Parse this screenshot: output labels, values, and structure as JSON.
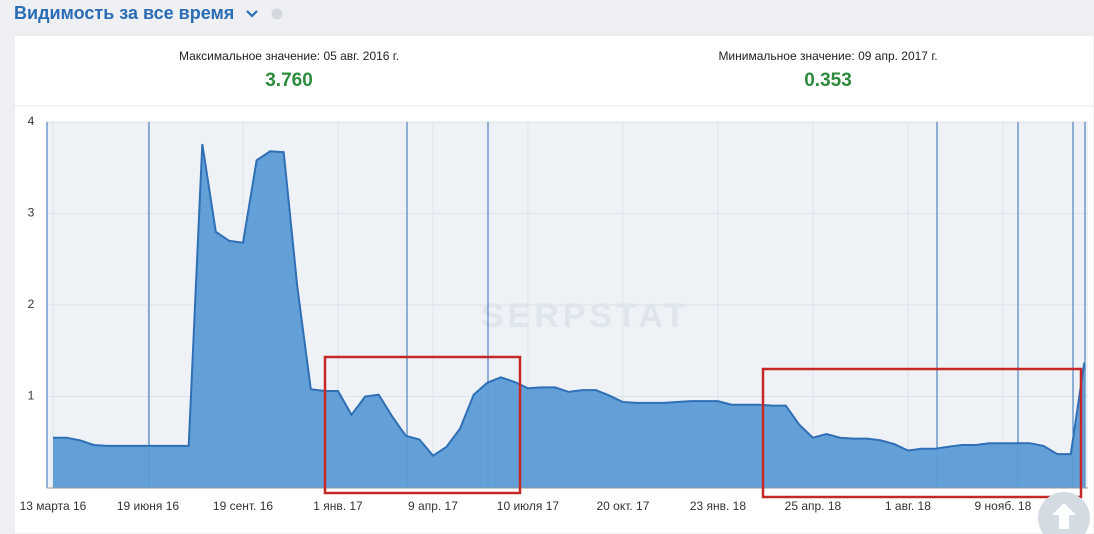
{
  "chart_data": {
    "type": "area",
    "title": "Видимость за все время",
    "stats": [
      {
        "label": "Максимальное значение: 05 авг. 2016 г.",
        "value": "3.760"
      },
      {
        "label": "Минимальное значение: 09 апр. 2017 г.",
        "value": "0.353"
      }
    ],
    "watermark": "SERPSTAT",
    "categories": [
      "13 марта 16",
      null,
      null,
      null,
      null,
      null,
      null,
      "19 июня 16",
      null,
      null,
      null,
      null,
      null,
      null,
      "19 сент. 16",
      null,
      null,
      null,
      null,
      null,
      null,
      "1 янв. 17",
      null,
      null,
      null,
      null,
      null,
      null,
      "9 апр. 17",
      null,
      null,
      null,
      null,
      null,
      null,
      "10 июля 17",
      null,
      null,
      null,
      null,
      null,
      null,
      "20 окт. 17",
      null,
      null,
      null,
      null,
      null,
      null,
      "23 янв. 18",
      null,
      null,
      null,
      null,
      null,
      null,
      "25 апр. 18",
      null,
      null,
      null,
      null,
      null,
      null,
      "1 авг. 18",
      null,
      null,
      null,
      null,
      null,
      null,
      "9 нояб. 18",
      null,
      null,
      null,
      null,
      null,
      null
    ],
    "series": [
      {
        "name": "Видимость",
        "color": "#5b9bd5",
        "values": [
          0.55,
          0.55,
          0.52,
          0.47,
          0.46,
          0.46,
          0.46,
          0.46,
          0.46,
          0.46,
          0.46,
          3.76,
          2.8,
          2.7,
          2.68,
          3.58,
          3.68,
          3.67,
          2.2,
          1.08,
          1.06,
          1.06,
          0.8,
          1.0,
          1.02,
          0.78,
          0.57,
          0.53,
          0.353,
          0.45,
          0.65,
          1.02,
          1.15,
          1.21,
          1.16,
          1.09,
          1.1,
          1.1,
          1.05,
          1.07,
          1.07,
          1.01,
          0.94,
          0.93,
          0.93,
          0.93,
          0.94,
          0.95,
          0.95,
          0.95,
          0.91,
          0.91,
          0.91,
          0.9,
          0.9,
          0.69,
          0.55,
          0.59,
          0.55,
          0.54,
          0.54,
          0.52,
          0.48,
          0.41,
          0.43,
          0.43,
          0.45,
          0.47,
          0.47,
          0.49,
          0.49,
          0.49,
          0.49,
          0.46,
          0.37,
          0.37,
          1.37
        ]
      }
    ],
    "ylim": [
      0,
      4
    ],
    "yticks": [
      1,
      2,
      3,
      4
    ],
    "grid": true
  }
}
